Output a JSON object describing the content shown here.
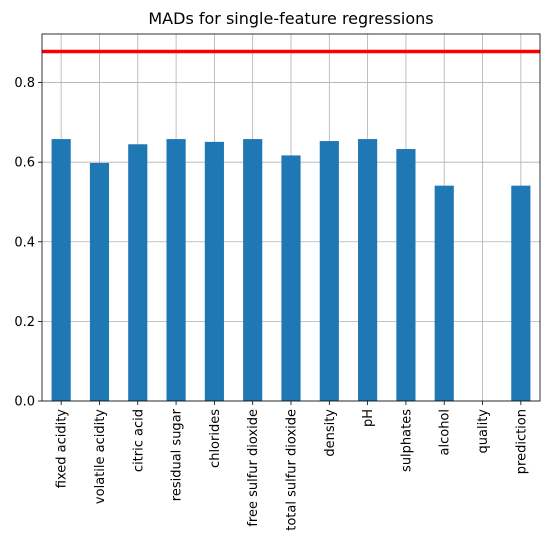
{
  "chart_data": {
    "type": "bar",
    "title": "MADs for single-feature regressions",
    "xlabel": "",
    "ylabel": "",
    "categories": [
      "fixed acidity",
      "volatile acidity",
      "citric acid",
      "residual sugar",
      "chlorides",
      "free sulfur dioxide",
      "total sulfur dioxide",
      "density",
      "pH",
      "sulphates",
      "alcohol",
      "quality",
      "prediction"
    ],
    "values": [
      0.658,
      0.598,
      0.645,
      0.658,
      0.651,
      0.658,
      0.617,
      0.653,
      0.658,
      0.633,
      0.541,
      0.0,
      0.541
    ],
    "ylim": [
      0,
      0.922
    ],
    "yticks": [
      "0.0",
      "0.2",
      "0.4",
      "0.6",
      "0.8"
    ],
    "reference_line": {
      "y": 0.878,
      "color": "#ff0000"
    },
    "bar_color": "#1f77b4",
    "grid": true,
    "legend": "none"
  }
}
